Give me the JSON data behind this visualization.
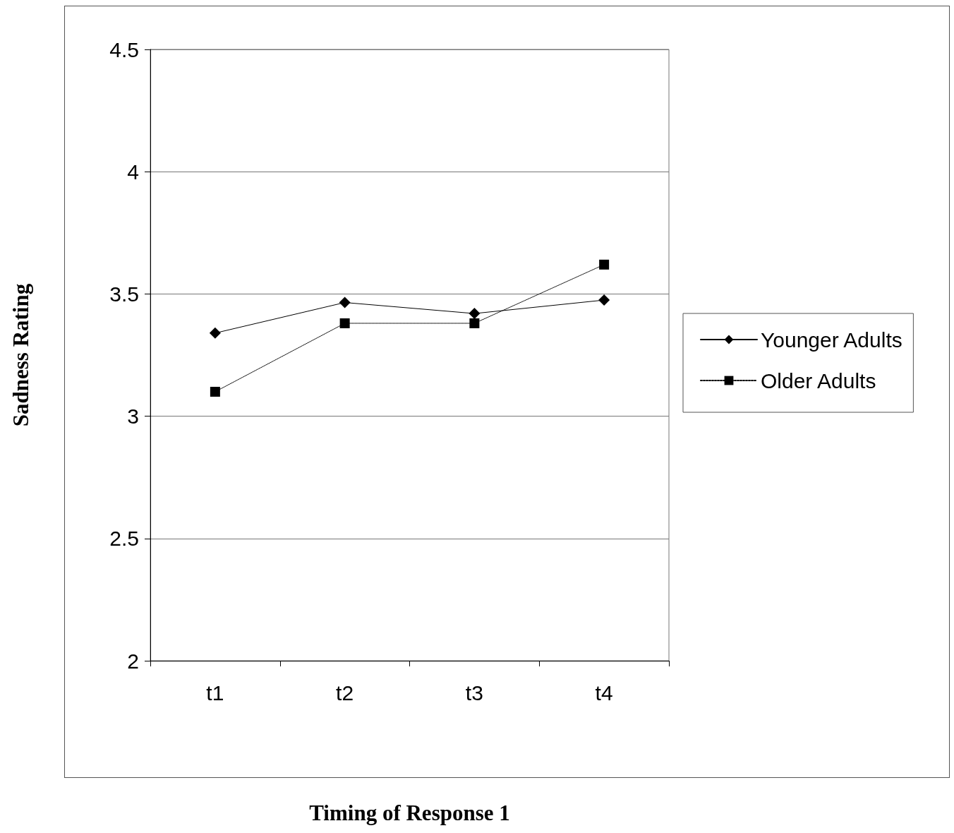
{
  "chart_data": {
    "type": "line",
    "xlabel": "Timing of Response 1",
    "ylabel": "Sadness Rating",
    "categories": [
      "t1",
      "t2",
      "t3",
      "t4"
    ],
    "series": [
      {
        "name": "Younger Adults",
        "color": "#000000",
        "marker": "diamond",
        "line_style": "solid",
        "values": [
          3.34,
          3.465,
          3.42,
          3.475
        ]
      },
      {
        "name": "Older Adults",
        "color": "#000000",
        "marker": "square",
        "line_style": "dotted",
        "values": [
          3.1,
          3.38,
          3.38,
          3.62
        ]
      }
    ],
    "ylim": [
      2,
      4.5
    ],
    "yticks": [
      2,
      2.5,
      3,
      3.5,
      4,
      4.5
    ],
    "grid": "y",
    "legend": "right"
  }
}
